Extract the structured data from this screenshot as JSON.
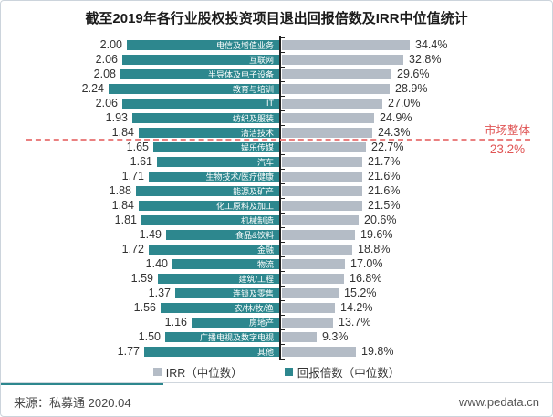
{
  "title": "截至2019年各行业股权投资项目退出回报倍数及IRR中位值统计",
  "chart_data": {
    "type": "bar",
    "orientation": "horizontal-diverging",
    "legend_position": "bottom",
    "categories": [
      "电信及增值业务",
      "互联网",
      "半导体及电子设备",
      "教育与培训",
      "IT",
      "纺织及服装",
      "清洁技术",
      "娱乐传媒",
      "汽车",
      "生物技术/医疗健康",
      "能源及矿产",
      "化工原料及加工",
      "机械制造",
      "食品&饮料",
      "金融",
      "物流",
      "建筑/工程",
      "连锁及零售",
      "农/林/牧/渔",
      "房地产",
      "广播电视及数字电视",
      "其他"
    ],
    "series": [
      {
        "name": "IRR（中位数）",
        "side": "right",
        "color": "#b4bcc6",
        "values": [
          34.4,
          32.8,
          29.6,
          28.9,
          27.0,
          24.9,
          24.3,
          22.7,
          21.7,
          21.6,
          21.6,
          21.5,
          20.6,
          19.6,
          18.8,
          17.0,
          16.8,
          15.2,
          14.2,
          13.7,
          9.3,
          19.8
        ]
      },
      {
        "name": "回报倍数（中位数）",
        "side": "left",
        "color": "#2d878e",
        "values": [
          2.0,
          2.06,
          2.08,
          2.24,
          2.06,
          1.93,
          1.84,
          1.65,
          1.61,
          1.71,
          1.88,
          1.84,
          1.81,
          1.49,
          1.72,
          1.4,
          1.59,
          1.37,
          1.56,
          1.16,
          1.5,
          1.77
        ]
      }
    ],
    "market_overall": {
      "label": "市场整体",
      "value": "23.2%",
      "color": "#e05555",
      "line_color": "#ea8080"
    }
  },
  "footer": {
    "source": "来源：私募通 2020.04",
    "website": "www.pedata.cn"
  }
}
